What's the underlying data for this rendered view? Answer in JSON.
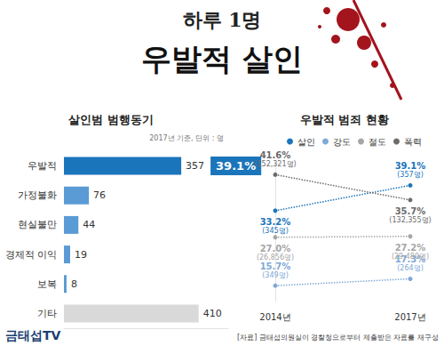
{
  "title": "하루 1명",
  "subtitle": "우발적 살인",
  "source": "[자료] 금태섭의원실이 경찰청으로부터 제출받은 자료를 재구성",
  "logo": "금태섭TV",
  "chart_data": [
    {
      "type": "bar",
      "title": "살인범 범행동기",
      "subtitle": "2017년 기준, 단위 : 명",
      "orientation": "horizontal",
      "categories": [
        "우발적",
        "가정불화",
        "현실불만",
        "경제적 이익",
        "보복",
        "기타"
      ],
      "values": [
        357,
        76,
        44,
        19,
        8,
        410
      ],
      "colors": [
        "#1b75bb",
        "#5b9bd5",
        "#5b9bd5",
        "#5b9bd5",
        "#5b9bd5",
        "#d9d9d9"
      ],
      "xlim": [
        0,
        500
      ],
      "data_labels": true,
      "tick_labels": "y",
      "annotations": [
        {
          "category": "우발적",
          "text": "39.1%"
        }
      ]
    },
    {
      "type": "line",
      "title": "우발적 범죄 현황",
      "categories": [
        "2014년",
        "2017년"
      ],
      "series": [
        {
          "name": "살인",
          "color": "#1b75bb",
          "values": [
            33.2,
            39.1
          ],
          "value_labels": [
            "33.2%",
            "39.1%"
          ],
          "count_labels": [
            "(345명)",
            "(357명)"
          ]
        },
        {
          "name": "강도",
          "color": "#7fa9d6",
          "values": [
            15.7,
            17.3
          ],
          "value_labels": [
            "15.7%",
            "17.3%"
          ],
          "count_labels": [
            "(349명)",
            "(264명)"
          ]
        },
        {
          "name": "절도",
          "color": "#a6a6a6",
          "values": [
            27.0,
            27.2
          ],
          "value_labels": [
            "27.0%",
            "27.2%"
          ],
          "count_labels": [
            "(26,856명)",
            "(29,480명)"
          ]
        },
        {
          "name": "폭력",
          "color": "#6b6b6b",
          "values": [
            41.6,
            35.7
          ],
          "value_labels": [
            "41.6%",
            "35.7%"
          ],
          "count_labels": [
            "(152,321명)",
            "(132,355명)"
          ]
        }
      ],
      "ylim": [
        12,
        45
      ],
      "legend": "top",
      "data_labels": true,
      "tick_labels": "x",
      "line_style": "dotted",
      "marker": "circle"
    }
  ]
}
